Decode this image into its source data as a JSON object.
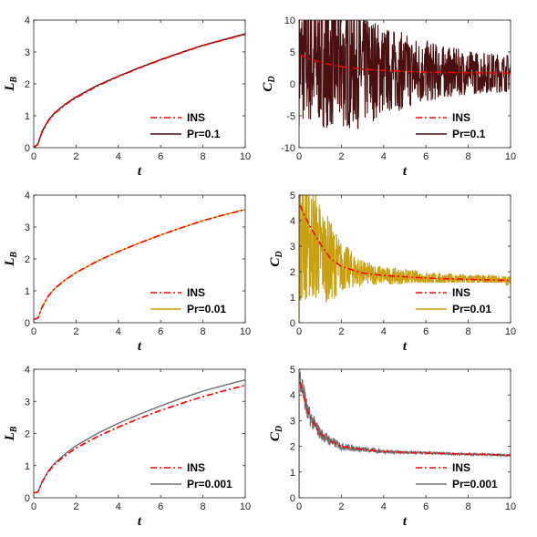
{
  "colors": {
    "ins": "#ff0000",
    "pr_0_1": "#4a1010",
    "pr_0_01": "#c8a010",
    "pr_0_001": "#707070",
    "axis": "#262626"
  },
  "chart_data": [
    {
      "id": "lb-pr01",
      "type": "line",
      "xlabel": "t",
      "ylabel": "L",
      "ylabel_sub": "B",
      "xlim": [
        0,
        10
      ],
      "ylim": [
        0,
        4
      ],
      "xticks": [
        0,
        2,
        4,
        6,
        8,
        10
      ],
      "yticks": [
        0,
        1,
        2,
        3,
        4
      ],
      "legend_position": "bottom-right",
      "series": [
        {
          "name": "INS",
          "style": "dashdot",
          "color": "#ff0000",
          "x": [
            0,
            0.2,
            0.4,
            0.7,
            1,
            1.5,
            2,
            3,
            4,
            5,
            6,
            7,
            8,
            9,
            10
          ],
          "y": [
            0,
            0.12,
            0.5,
            0.85,
            1.08,
            1.35,
            1.57,
            1.93,
            2.23,
            2.5,
            2.75,
            2.98,
            3.2,
            3.38,
            3.55
          ]
        },
        {
          "name": "Pr=0.1",
          "style": "solid",
          "color": "#4a1010",
          "x": [
            0,
            0.2,
            0.4,
            0.7,
            1,
            1.5,
            2,
            3,
            4,
            5,
            6,
            7,
            8,
            9,
            10
          ],
          "y": [
            0,
            0.12,
            0.52,
            0.87,
            1.1,
            1.37,
            1.59,
            1.95,
            2.24,
            2.51,
            2.76,
            2.99,
            3.21,
            3.39,
            3.57
          ]
        }
      ]
    },
    {
      "id": "cd-pr01",
      "type": "line",
      "xlabel": "t",
      "ylabel": "C",
      "ylabel_sub": "D",
      "xlim": [
        0,
        10
      ],
      "ylim": [
        -10,
        10
      ],
      "xticks": [
        0,
        2,
        4,
        6,
        8,
        10
      ],
      "yticks": [
        -10,
        -5,
        0,
        5,
        10
      ],
      "legend_position": "bottom-right",
      "series": [
        {
          "name": "INS",
          "style": "dashdot",
          "color": "#ff0000",
          "x": [
            0.05,
            0.2,
            0.5,
            1,
            1.5,
            2,
            3,
            4,
            5,
            6,
            7,
            8,
            9,
            10
          ],
          "y": [
            4.6,
            4.3,
            3.9,
            3.4,
            3.0,
            2.7,
            2.3,
            2.1,
            1.95,
            1.85,
            1.8,
            1.75,
            1.72,
            1.7
          ]
        },
        {
          "name": "Pr=0.1",
          "style": "solid",
          "color": "#4a1010",
          "noisy": true,
          "x": [
            0,
            1,
            2,
            3,
            4,
            5,
            6,
            7,
            8,
            9,
            10
          ],
          "y": [
            3.5,
            3.2,
            2.8,
            2.5,
            2.2,
            2.0,
            1.9,
            1.85,
            1.8,
            1.75,
            1.7
          ],
          "amplitude": [
            10,
            10,
            10,
            9.5,
            7,
            6,
            5,
            4,
            3.5,
            3.2,
            3
          ]
        }
      ]
    },
    {
      "id": "lb-pr001",
      "type": "line",
      "xlabel": "t",
      "ylabel": "L",
      "ylabel_sub": "B",
      "xlim": [
        0,
        10
      ],
      "ylim": [
        0,
        4
      ],
      "xticks": [
        0,
        2,
        4,
        6,
        8,
        10
      ],
      "yticks": [
        0,
        1,
        2,
        3,
        4
      ],
      "legend_position": "bottom-right",
      "series": [
        {
          "name": "INS",
          "style": "dashdot",
          "color": "#ff0000",
          "x": [
            0,
            0.2,
            0.4,
            0.7,
            1,
            1.5,
            2,
            3,
            4,
            5,
            6,
            7,
            8,
            9,
            10
          ],
          "y": [
            0.1,
            0.15,
            0.5,
            0.85,
            1.08,
            1.35,
            1.57,
            1.93,
            2.23,
            2.5,
            2.75,
            2.98,
            3.2,
            3.38,
            3.55
          ]
        },
        {
          "name": "Pr=0.01",
          "style": "solid",
          "color": "#c8a010",
          "x": [
            0,
            0.2,
            0.4,
            0.7,
            1,
            1.5,
            2,
            3,
            4,
            5,
            6,
            7,
            8,
            9,
            10
          ],
          "y": [
            0.1,
            0.15,
            0.5,
            0.85,
            1.08,
            1.35,
            1.57,
            1.93,
            2.23,
            2.5,
            2.75,
            2.98,
            3.2,
            3.38,
            3.55
          ]
        }
      ]
    },
    {
      "id": "cd-pr001",
      "type": "line",
      "xlabel": "t",
      "ylabel": "C",
      "ylabel_sub": "D",
      "xlim": [
        0,
        10
      ],
      "ylim": [
        0,
        5
      ],
      "xticks": [
        0,
        2,
        4,
        6,
        8,
        10
      ],
      "yticks": [
        0,
        1,
        2,
        3,
        4,
        5
      ],
      "legend_position": "bottom-right",
      "series": [
        {
          "name": "INS",
          "style": "dashdot",
          "color": "#ff0000",
          "x": [
            0.05,
            0.2,
            0.5,
            1,
            1.5,
            2,
            3,
            4,
            5,
            6,
            7,
            8,
            9,
            10
          ],
          "y": [
            4.6,
            4.3,
            3.8,
            3.1,
            2.5,
            2.2,
            1.95,
            1.85,
            1.8,
            1.75,
            1.72,
            1.7,
            1.68,
            1.65
          ]
        },
        {
          "name": "Pr=0.01",
          "style": "solid",
          "color": "#c8a010",
          "noisy": true,
          "x": [
            0,
            0.5,
            1,
            1.5,
            2,
            3,
            4,
            5,
            6,
            7,
            8,
            9,
            10
          ],
          "y": [
            3.8,
            3.3,
            2.8,
            2.4,
            2.2,
            1.95,
            1.85,
            1.8,
            1.75,
            1.72,
            1.7,
            1.68,
            1.65
          ],
          "amplitude": [
            3,
            2.5,
            2,
            1.6,
            1.0,
            0.5,
            0.35,
            0.3,
            0.25,
            0.22,
            0.2,
            0.2,
            0.18
          ]
        }
      ]
    },
    {
      "id": "lb-pr0001",
      "type": "line",
      "xlabel": "t",
      "ylabel": "L",
      "ylabel_sub": "B",
      "xlim": [
        0,
        10
      ],
      "ylim": [
        0,
        4
      ],
      "xticks": [
        0,
        2,
        4,
        6,
        8,
        10
      ],
      "yticks": [
        0,
        1,
        2,
        3,
        4
      ],
      "legend_position": "bottom-right",
      "series": [
        {
          "name": "INS",
          "style": "dashdot",
          "color": "#ff0000",
          "x": [
            0,
            0.2,
            0.4,
            0.7,
            1,
            1.5,
            2,
            3,
            4,
            5,
            6,
            7,
            8,
            9,
            10
          ],
          "y": [
            0.15,
            0.18,
            0.5,
            0.82,
            1.05,
            1.32,
            1.55,
            1.9,
            2.2,
            2.47,
            2.72,
            2.94,
            3.15,
            3.33,
            3.5
          ]
        },
        {
          "name": "Pr=0.001",
          "style": "solid",
          "color": "#707070",
          "x": [
            0,
            0.2,
            0.4,
            0.7,
            1,
            1.5,
            2,
            3,
            4,
            5,
            6,
            7,
            8,
            9,
            10
          ],
          "y": [
            0.15,
            0.18,
            0.5,
            0.85,
            1.08,
            1.38,
            1.62,
            2.0,
            2.32,
            2.6,
            2.86,
            3.1,
            3.32,
            3.5,
            3.67
          ]
        }
      ]
    },
    {
      "id": "cd-pr0001",
      "type": "line",
      "xlabel": "t",
      "ylabel": "C",
      "ylabel_sub": "D",
      "xlim": [
        0,
        10
      ],
      "ylim": [
        0,
        5
      ],
      "xticks": [
        0,
        2,
        4,
        6,
        8,
        10
      ],
      "yticks": [
        0,
        1,
        2,
        3,
        4,
        5
      ],
      "legend_position": "bottom-right",
      "series": [
        {
          "name": "INS",
          "style": "dashdot",
          "color": "#ff0000",
          "x": [
            0.05,
            0.2,
            0.4,
            0.7,
            1,
            1.5,
            2,
            3,
            4,
            5,
            6,
            7,
            8,
            9,
            10
          ],
          "y": [
            4.5,
            4.0,
            3.4,
            2.9,
            2.5,
            2.2,
            2.0,
            1.88,
            1.8,
            1.77,
            1.74,
            1.72,
            1.7,
            1.68,
            1.65
          ]
        },
        {
          "name": "Pr=0.001",
          "style": "solid",
          "color": "#707070",
          "noisy": true,
          "x": [
            0,
            0.2,
            0.4,
            0.7,
            1,
            1.5,
            2,
            3,
            4,
            5,
            6,
            7,
            8,
            9,
            10
          ],
          "y": [
            4.8,
            4.2,
            3.3,
            2.9,
            2.5,
            2.2,
            2.0,
            1.88,
            1.8,
            1.77,
            1.74,
            1.72,
            1.7,
            1.68,
            1.65
          ],
          "amplitude": [
            0.5,
            0.5,
            0.4,
            0.3,
            0.25,
            0.2,
            0.15,
            0.1,
            0.08,
            0.06,
            0.05,
            0.05,
            0.04,
            0.04,
            0.04
          ]
        }
      ]
    }
  ]
}
